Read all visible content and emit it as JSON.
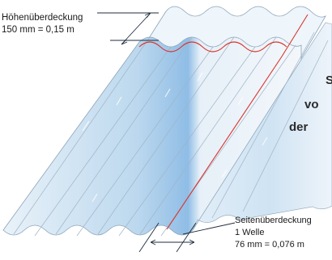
{
  "labels": {
    "top_line1": "Höhenüberdeckung",
    "top_line2": "150 mm = 0,15 m",
    "side_line1": "Seitenüberdeckung",
    "side_line2": "1 Welle",
    "side_line3": "76 mm = 0,076 m"
  },
  "clipped_text": [
    "S",
    "vo",
    "der"
  ],
  "colors": {
    "sheet_fill": "#cfe2f0",
    "sheet_highlight": "#9fc6e8",
    "overlap_line": "#d9342b",
    "outline": "#8aa3b8",
    "dimension_line": "#1f2d3d"
  }
}
